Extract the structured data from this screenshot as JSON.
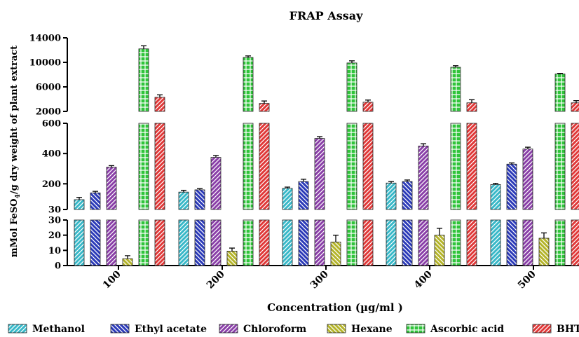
{
  "chart_data": {
    "type": "bar",
    "title": "FRAP Assay",
    "xlabel": "Concentration (µg/ml )",
    "ylabel_main": "mMol FeSO",
    "ylabel_sub": "4",
    "ylabel_rest": "/g dry weight of plant extract",
    "categories": [
      "100",
      "200",
      "300",
      "400",
      "500"
    ],
    "axis_segments": [
      {
        "range": [
          0,
          30
        ],
        "ticks": [
          "0",
          "10",
          "20",
          "30"
        ]
      },
      {
        "range": [
          30,
          600
        ],
        "ticks": [
          "30",
          "200",
          "400",
          "600"
        ]
      },
      {
        "range": [
          2000,
          14000
        ],
        "ticks": [
          "2000",
          "6000",
          "10000",
          "14000"
        ]
      }
    ],
    "legend_position": "bottom",
    "series": [
      {
        "name": "Methanol",
        "color": "#38b8c8",
        "values": [
          95,
          145,
          170,
          205,
          195
        ],
        "errors": [
          15,
          12,
          8,
          10,
          8
        ]
      },
      {
        "name": "Ethyl acetate",
        "color": "#2b3ab8",
        "values": [
          140,
          160,
          215,
          215,
          330
        ],
        "errors": [
          10,
          8,
          15,
          10,
          8
        ]
      },
      {
        "name": "Chloroform",
        "color": "#8a3fa8",
        "values": [
          310,
          375,
          500,
          450,
          430
        ],
        "errors": [
          10,
          12,
          12,
          15,
          12
        ]
      },
      {
        "name": "Hexane",
        "color": "#b4b42a",
        "values": [
          4.5,
          9.5,
          15.5,
          20,
          18
        ],
        "errors": [
          2,
          2,
          4.5,
          4.5,
          3.5
        ]
      },
      {
        "name": "Ascorbic acid",
        "color": "#2fc43a",
        "values": [
          12200,
          10800,
          9900,
          9200,
          8100
        ],
        "errors": [
          500,
          250,
          350,
          250,
          100
        ]
      },
      {
        "name": "BHT",
        "color": "#e03838",
        "values": [
          4300,
          3300,
          3500,
          3400,
          3400
        ],
        "errors": [
          400,
          400,
          350,
          500,
          350
        ]
      }
    ]
  }
}
